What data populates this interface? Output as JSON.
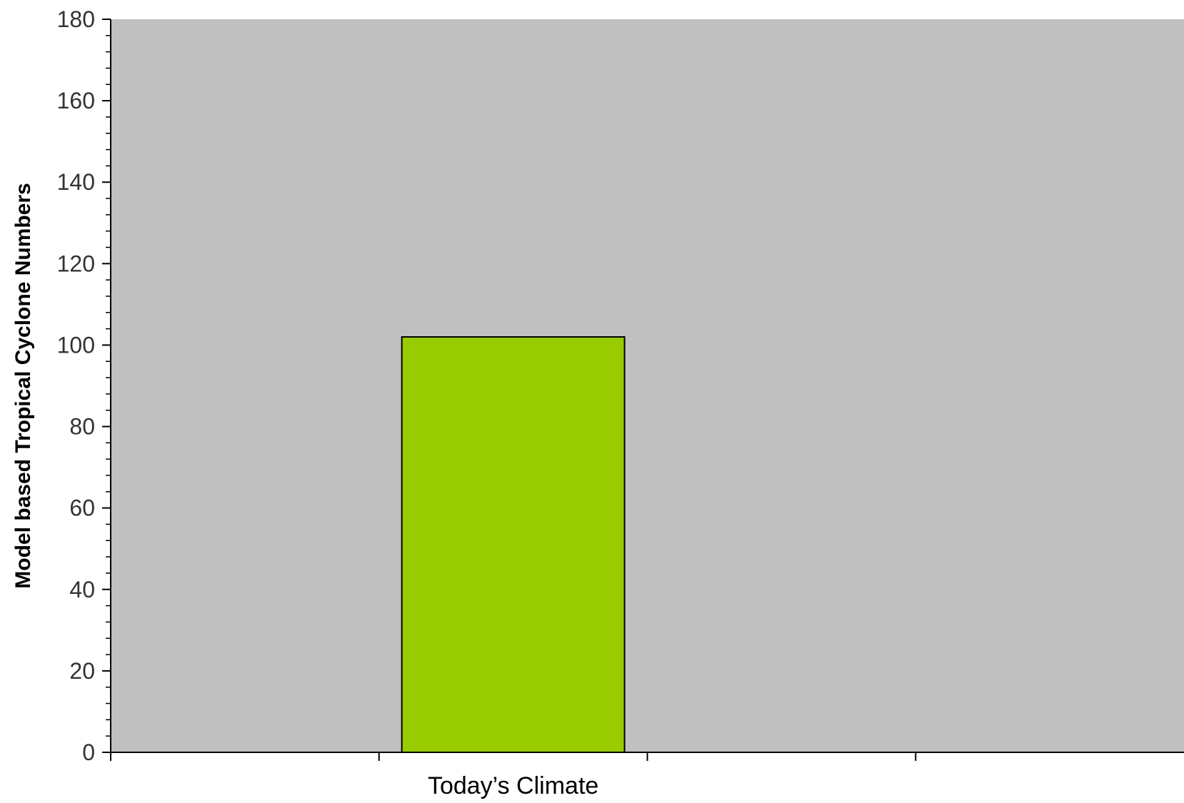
{
  "chart_data": {
    "type": "bar",
    "categories": [
      "",
      "Today’s Climate",
      "",
      ""
    ],
    "values": [
      null,
      102,
      null,
      null
    ],
    "title": "",
    "xlabel": "",
    "ylabel": "Model based Tropical Cyclone Numbers",
    "ylim": [
      0,
      180
    ],
    "yticks": [
      0,
      20,
      40,
      60,
      80,
      100,
      120,
      140,
      160,
      180
    ],
    "grid": false,
    "legend": "none",
    "colors": {
      "plot_background": "#c0c0c0",
      "bar_fill": "#99cc00",
      "bar_stroke": "#000000",
      "axis": "#000000"
    }
  }
}
